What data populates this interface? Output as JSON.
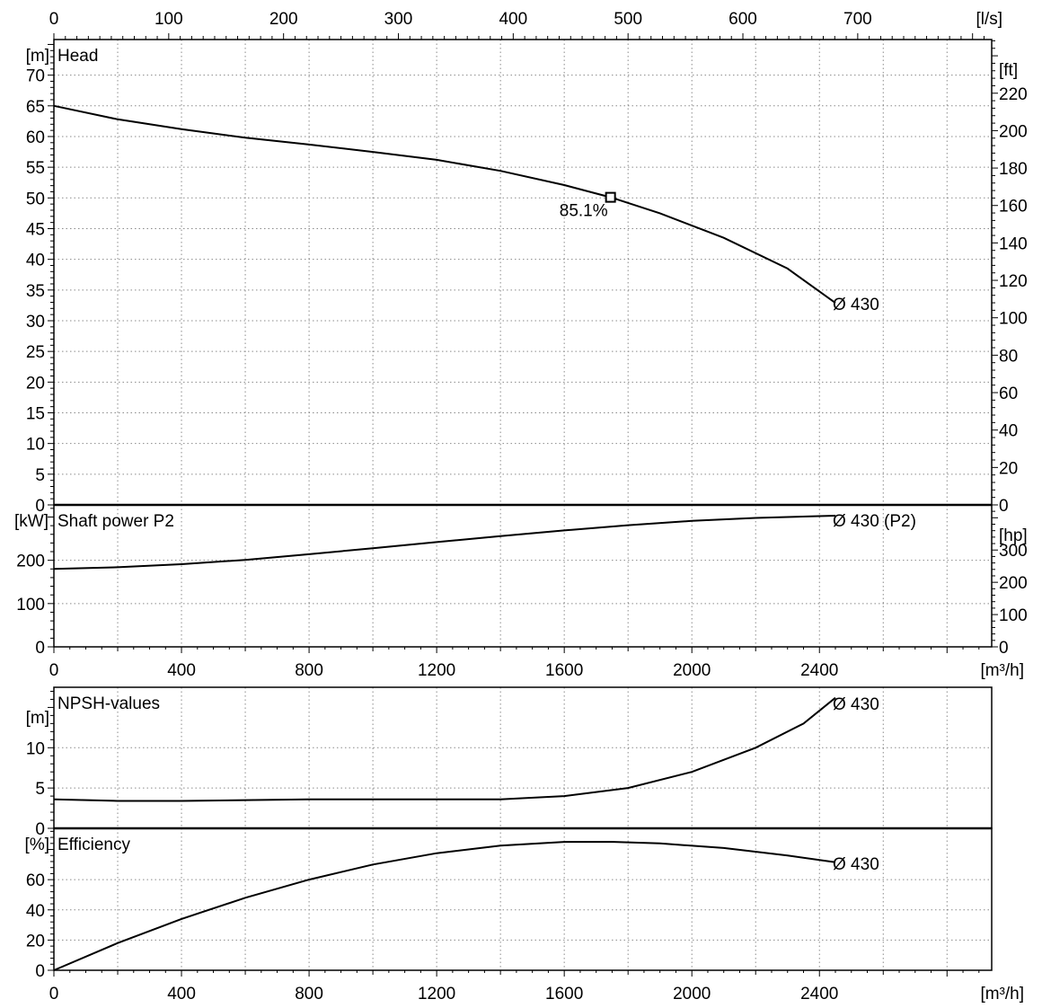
{
  "chart_data": [
    {
      "type": "line",
      "id": "head",
      "title": "Head",
      "xlim": [
        0,
        2940
      ],
      "ylim": [
        0,
        75.8
      ],
      "ylabel": "[m]",
      "y_ticks": [
        0,
        5,
        10,
        15,
        20,
        25,
        30,
        35,
        40,
        45,
        50,
        55,
        60,
        65,
        70
      ],
      "y2_label": "[ft]",
      "y2_ticks": [
        0,
        20,
        40,
        60,
        80,
        100,
        120,
        140,
        160,
        180,
        200,
        220
      ],
      "x2_label": "[l/s]",
      "x2_ticks": [
        0,
        100,
        200,
        300,
        400,
        500,
        600,
        700
      ],
      "series": [
        {
          "name": "Ø 430",
          "x": [
            0,
            200,
            400,
            600,
            800,
            1000,
            1200,
            1400,
            1600,
            1745,
            1900,
            2100,
            2300,
            2450
          ],
          "y": [
            65,
            62.8,
            61.2,
            59.8,
            58.7,
            57.5,
            56.2,
            54.4,
            52.1,
            50.1,
            47.5,
            43.5,
            38.5,
            32.9
          ]
        }
      ],
      "duty_point": {
        "x": 1745,
        "y": 50.1,
        "label": "85.1%"
      }
    },
    {
      "type": "line",
      "id": "power",
      "title": "Shaft power P2",
      "xlim": [
        0,
        2940
      ],
      "ylim": [
        0,
        328
      ],
      "ylabel": "[kW]",
      "y_ticks": [
        0,
        100,
        200
      ],
      "y2_label": "[hp]",
      "y2_ticks": [
        0,
        100,
        200,
        300
      ],
      "xlabel": "[m³/h]",
      "x_ticks": [
        0,
        400,
        800,
        1200,
        1600,
        2000,
        2400
      ],
      "series": [
        {
          "name": "Ø 430 (P2)",
          "x": [
            0,
            200,
            400,
            600,
            800,
            1000,
            1200,
            1400,
            1600,
            1800,
            2000,
            2200,
            2450
          ],
          "y": [
            180,
            184,
            191,
            201,
            214,
            228,
            242,
            256,
            269,
            281,
            291,
            298,
            303
          ]
        }
      ]
    },
    {
      "type": "line",
      "id": "npsh",
      "title": "NPSH-values",
      "xlim": [
        0,
        2940
      ],
      "ylim": [
        0,
        17.5
      ],
      "ylabel": "[m]",
      "y_ticks": [
        0,
        5,
        10
      ],
      "series": [
        {
          "name": "Ø 430",
          "x": [
            0,
            200,
            400,
            600,
            800,
            1000,
            1200,
            1400,
            1600,
            1800,
            2000,
            2200,
            2350,
            2450
          ],
          "y": [
            3.6,
            3.4,
            3.4,
            3.5,
            3.6,
            3.6,
            3.6,
            3.6,
            4,
            5,
            7,
            10,
            13,
            16.2
          ]
        }
      ]
    },
    {
      "type": "line",
      "id": "efficiency",
      "title": "Efficiency",
      "xlim": [
        0,
        2940
      ],
      "ylim": [
        0,
        94
      ],
      "ylabel": "[%]",
      "y_ticks": [
        0,
        20,
        40,
        60
      ],
      "xlabel": "[m³/h]",
      "x_ticks": [
        0,
        400,
        800,
        1200,
        1600,
        2000,
        2400
      ],
      "series": [
        {
          "name": "Ø 430",
          "x": [
            0,
            200,
            400,
            600,
            800,
            1000,
            1200,
            1400,
            1600,
            1745,
            1900,
            2100,
            2300,
            2450
          ],
          "y": [
            0,
            18,
            34,
            48,
            60,
            70,
            77.5,
            82.5,
            85,
            85.1,
            84,
            81,
            76,
            71.5
          ]
        }
      ]
    }
  ]
}
